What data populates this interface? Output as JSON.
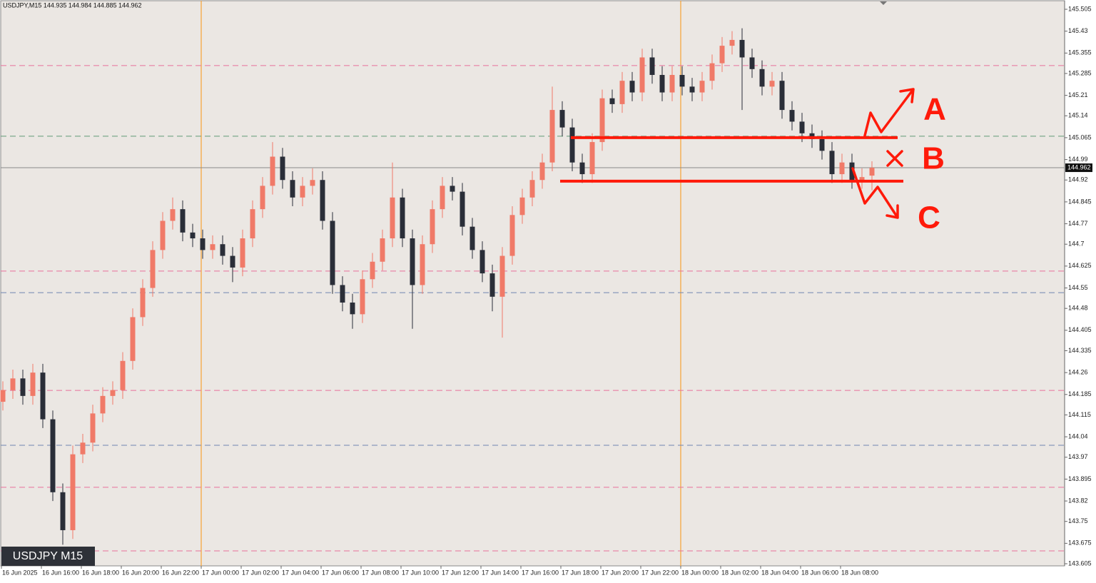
{
  "chart_data": {
    "type": "candlestick",
    "header": "USDJPY,M15  144.935 144.984 144.885 144.962",
    "symbol_label": "USDJPY M15",
    "x_labels": [
      "16 Jun 2025",
      "16 Jun 16:00",
      "16 Jun 18:00",
      "16 Jun 20:00",
      "16 Jun 22:00",
      "17 Jun 00:00",
      "17 Jun 02:00",
      "17 Jun 04:00",
      "17 Jun 06:00",
      "17 Jun 08:00",
      "17 Jun 10:00",
      "17 Jun 12:00",
      "17 Jun 14:00",
      "17 Jun 16:00",
      "17 Jun 18:00",
      "17 Jun 20:00",
      "17 Jun 22:00",
      "18 Jun 00:00",
      "18 Jun 02:00",
      "18 Jun 04:00",
      "18 Jun 06:00",
      "18 Jun 08:00"
    ],
    "open": [
      144.16,
      144.2,
      144.24,
      144.18,
      144.26,
      144.1,
      143.85,
      143.72,
      143.98,
      144.02,
      144.12,
      144.18,
      144.2,
      144.3,
      144.45,
      144.55,
      144.68,
      144.78,
      144.82,
      144.74,
      144.72,
      144.68,
      144.7,
      144.66,
      144.62,
      144.72,
      144.82,
      144.9,
      145.0,
      144.92,
      144.86,
      144.9,
      144.92,
      144.78,
      144.56,
      144.5,
      144.46,
      144.58,
      144.64,
      144.72,
      144.86,
      144.72,
      144.56,
      144.7,
      144.82,
      144.9,
      144.88,
      144.76,
      144.68,
      144.6,
      144.52,
      144.66,
      144.8,
      144.86,
      144.92,
      144.98,
      145.16,
      145.1,
      144.98,
      144.94,
      145.05,
      145.2,
      145.18,
      145.26,
      145.22,
      145.34,
      145.28,
      145.22,
      145.28,
      145.24,
      145.22,
      145.26,
      145.32,
      145.38,
      145.4,
      145.34,
      145.3,
      145.24,
      145.26,
      145.16,
      145.12,
      145.08,
      145.06,
      145.02,
      144.94,
      144.98,
      144.92,
      144.935
    ],
    "high": [
      144.23,
      144.27,
      144.27,
      144.29,
      144.29,
      144.13,
      143.88,
      144.01,
      144.05,
      144.15,
      144.21,
      144.23,
      144.33,
      144.48,
      144.58,
      144.71,
      144.81,
      144.86,
      144.85,
      144.77,
      144.75,
      144.73,
      144.73,
      144.69,
      144.75,
      144.85,
      144.93,
      145.05,
      145.03,
      144.95,
      144.93,
      144.96,
      144.95,
      144.81,
      144.59,
      144.53,
      144.61,
      144.67,
      144.75,
      144.98,
      144.89,
      144.75,
      144.73,
      144.85,
      144.93,
      144.93,
      144.91,
      144.79,
      144.71,
      144.63,
      144.69,
      144.83,
      144.89,
      144.95,
      145.01,
      145.24,
      145.19,
      145.13,
      145.01,
      145.08,
      145.23,
      145.23,
      145.29,
      145.29,
      145.37,
      145.37,
      145.31,
      145.31,
      145.31,
      145.27,
      145.29,
      145.35,
      145.41,
      145.43,
      145.44,
      145.37,
      145.33,
      145.29,
      145.29,
      145.19,
      145.15,
      145.11,
      145.09,
      145.05,
      145.01,
      145.01,
      144.96,
      144.984
    ],
    "low": [
      144.13,
      144.17,
      144.15,
      144.15,
      144.07,
      143.82,
      143.67,
      143.69,
      143.95,
      143.99,
      144.09,
      144.15,
      144.17,
      144.27,
      144.42,
      144.52,
      144.65,
      144.75,
      144.71,
      144.69,
      144.65,
      144.65,
      144.63,
      144.57,
      144.59,
      144.69,
      144.79,
      144.87,
      144.89,
      144.83,
      144.83,
      144.87,
      144.75,
      144.53,
      144.47,
      144.41,
      144.43,
      144.55,
      144.61,
      144.69,
      144.69,
      144.41,
      144.53,
      144.67,
      144.79,
      144.85,
      144.73,
      144.65,
      144.57,
      144.47,
      144.38,
      144.63,
      144.77,
      144.83,
      144.89,
      144.95,
      145.07,
      144.95,
      144.91,
      144.91,
      145.02,
      145.15,
      145.15,
      145.19,
      145.19,
      145.25,
      145.19,
      145.19,
      145.21,
      145.19,
      145.19,
      145.23,
      145.29,
      145.35,
      145.16,
      145.27,
      145.21,
      145.21,
      145.13,
      145.09,
      145.05,
      145.03,
      144.99,
      144.91,
      144.91,
      144.89,
      144.89,
      144.885
    ],
    "close": [
      144.2,
      144.24,
      144.18,
      144.26,
      144.1,
      143.85,
      143.72,
      143.98,
      144.02,
      144.12,
      144.18,
      144.2,
      144.3,
      144.45,
      144.55,
      144.68,
      144.78,
      144.82,
      144.74,
      144.72,
      144.68,
      144.7,
      144.66,
      144.62,
      144.72,
      144.82,
      144.9,
      145.0,
      144.92,
      144.86,
      144.9,
      144.92,
      144.78,
      144.56,
      144.5,
      144.46,
      144.58,
      144.64,
      144.72,
      144.86,
      144.72,
      144.56,
      144.7,
      144.82,
      144.9,
      144.88,
      144.76,
      144.68,
      144.6,
      144.52,
      144.66,
      144.8,
      144.86,
      144.92,
      144.98,
      145.16,
      145.1,
      144.98,
      144.94,
      145.05,
      145.2,
      145.18,
      145.26,
      145.22,
      145.34,
      145.28,
      145.22,
      145.28,
      145.24,
      145.22,
      145.26,
      145.32,
      145.38,
      145.4,
      145.34,
      145.3,
      145.24,
      145.26,
      145.16,
      145.12,
      145.08,
      145.06,
      145.02,
      144.94,
      144.98,
      144.92,
      144.93,
      144.962
    ],
    "up_color": "#f07a68",
    "down_color": "#2a2e38",
    "ylim": [
      143.605,
      145.505
    ],
    "yticks": [
      143.605,
      143.675,
      143.75,
      143.82,
      143.895,
      143.97,
      144.04,
      144.115,
      144.185,
      144.26,
      144.335,
      144.405,
      144.48,
      144.55,
      144.625,
      144.7,
      144.77,
      144.845,
      144.92,
      144.99,
      145.065,
      145.14,
      145.21,
      145.285,
      145.355,
      145.43,
      145.505
    ],
    "current_price": 144.962,
    "levels": [
      {
        "value": 145.312,
        "color": "#e8709a"
      },
      {
        "value": 145.07,
        "color": "#5f9a76"
      },
      {
        "value": 144.608,
        "color": "#e8709a"
      },
      {
        "value": 144.534,
        "color": "#6f86b0"
      },
      {
        "value": 144.199,
        "color": "#e8709a"
      },
      {
        "value": 144.011,
        "color": "#6f86b0"
      },
      {
        "value": 143.867,
        "color": "#e8709a"
      },
      {
        "value": 143.649,
        "color": "#e8709a"
      }
    ],
    "drawn_levels": [
      145.065,
      144.916
    ],
    "annotations": [
      "A",
      "B",
      "C"
    ]
  }
}
